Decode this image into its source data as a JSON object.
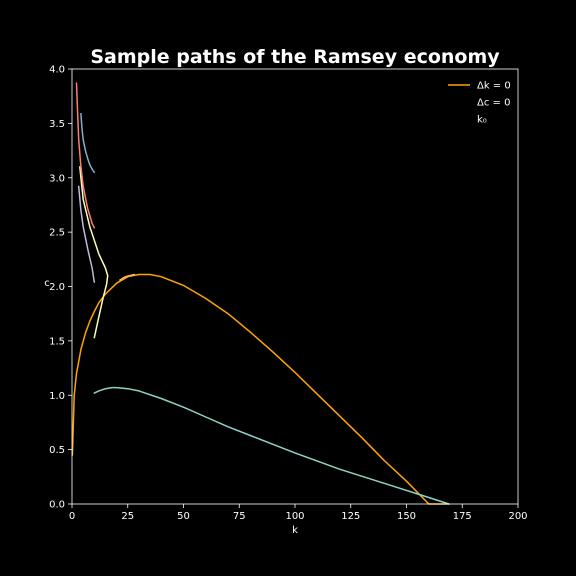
{
  "chart_data": {
    "type": "line",
    "title": "Sample paths of the Ramsey economy",
    "xlabel": "k",
    "ylabel": "c",
    "xlim": [
      0,
      200
    ],
    "ylim": [
      0,
      4.0
    ],
    "x_ticks": [
      0,
      25,
      50,
      75,
      100,
      125,
      150,
      175,
      200
    ],
    "y_ticks": [
      0.0,
      0.5,
      1.0,
      1.5,
      2.0,
      2.5,
      3.0,
      3.5,
      4.0
    ],
    "x_tick_labels": [
      "0",
      "25",
      "50",
      "75",
      "100",
      "125",
      "150",
      "175",
      "200"
    ],
    "y_tick_labels": [
      "0.0",
      "0.5",
      "1.0",
      "1.5",
      "2.0",
      "2.5",
      "3.0",
      "3.5",
      "4.0"
    ],
    "grid": false,
    "legend_position": "top-right",
    "legend": [
      {
        "label": "Δk = 0",
        "type": "line",
        "color": "#ffa500"
      },
      {
        "label": "Δc = 0",
        "type": "none",
        "color": "#ffffff"
      },
      {
        "label": "k₀",
        "type": "none",
        "color": "#ffffff"
      }
    ],
    "series": [
      {
        "color": "#ffa500",
        "x": [
          0.2,
          1,
          2,
          4,
          6,
          8,
          10,
          12,
          15,
          18,
          20,
          25,
          30,
          35,
          40,
          50,
          60,
          70,
          80,
          90,
          100,
          110,
          120,
          130,
          140,
          150,
          160,
          169
        ],
        "y": [
          0.45,
          1.0,
          1.2,
          1.42,
          1.57,
          1.68,
          1.77,
          1.85,
          1.93,
          1.99,
          2.03,
          2.09,
          2.11,
          2.11,
          2.09,
          2.01,
          1.89,
          1.75,
          1.58,
          1.4,
          1.21,
          1.01,
          0.81,
          0.61,
          0.4,
          0.21,
          0.0,
          0.0
        ]
      },
      {
        "color": "#8dd3c7",
        "x": [
          10,
          12,
          15,
          18,
          20,
          25,
          30,
          40,
          50,
          60,
          70,
          80,
          100,
          120,
          140,
          160,
          169
        ],
        "y": [
          1.02,
          1.04,
          1.06,
          1.07,
          1.07,
          1.06,
          1.04,
          0.97,
          0.89,
          0.8,
          0.71,
          0.63,
          0.47,
          0.32,
          0.19,
          0.06,
          0.0
        ]
      },
      {
        "color": "#ffffb3",
        "x": [
          10,
          12,
          14,
          15.5,
          16,
          15,
          12,
          8,
          5,
          3.5
        ],
        "y": [
          1.53,
          1.72,
          1.9,
          2.02,
          2.1,
          2.17,
          2.3,
          2.55,
          2.8,
          3.1
        ]
      },
      {
        "color": "#bebada",
        "x": [
          3,
          4,
          5,
          7,
          9,
          10
        ],
        "y": [
          2.92,
          2.7,
          2.55,
          2.35,
          2.17,
          2.04
        ]
      },
      {
        "color": "#fb8072",
        "x": [
          2,
          2.5,
          3,
          4,
          5,
          7,
          9,
          10
        ],
        "y": [
          3.87,
          3.6,
          3.35,
          3.1,
          2.92,
          2.72,
          2.58,
          2.54
        ]
      },
      {
        "color": "#80b1d3",
        "x": [
          4,
          4.5,
          5,
          6,
          7,
          8,
          9,
          10
        ],
        "y": [
          3.59,
          3.45,
          3.35,
          3.25,
          3.18,
          3.12,
          3.08,
          3.05
        ]
      },
      {
        "color": "#fdb462",
        "x": [
          21.5,
          24,
          28
        ],
        "y": [
          2.06,
          2.09,
          2.11
        ]
      }
    ]
  }
}
